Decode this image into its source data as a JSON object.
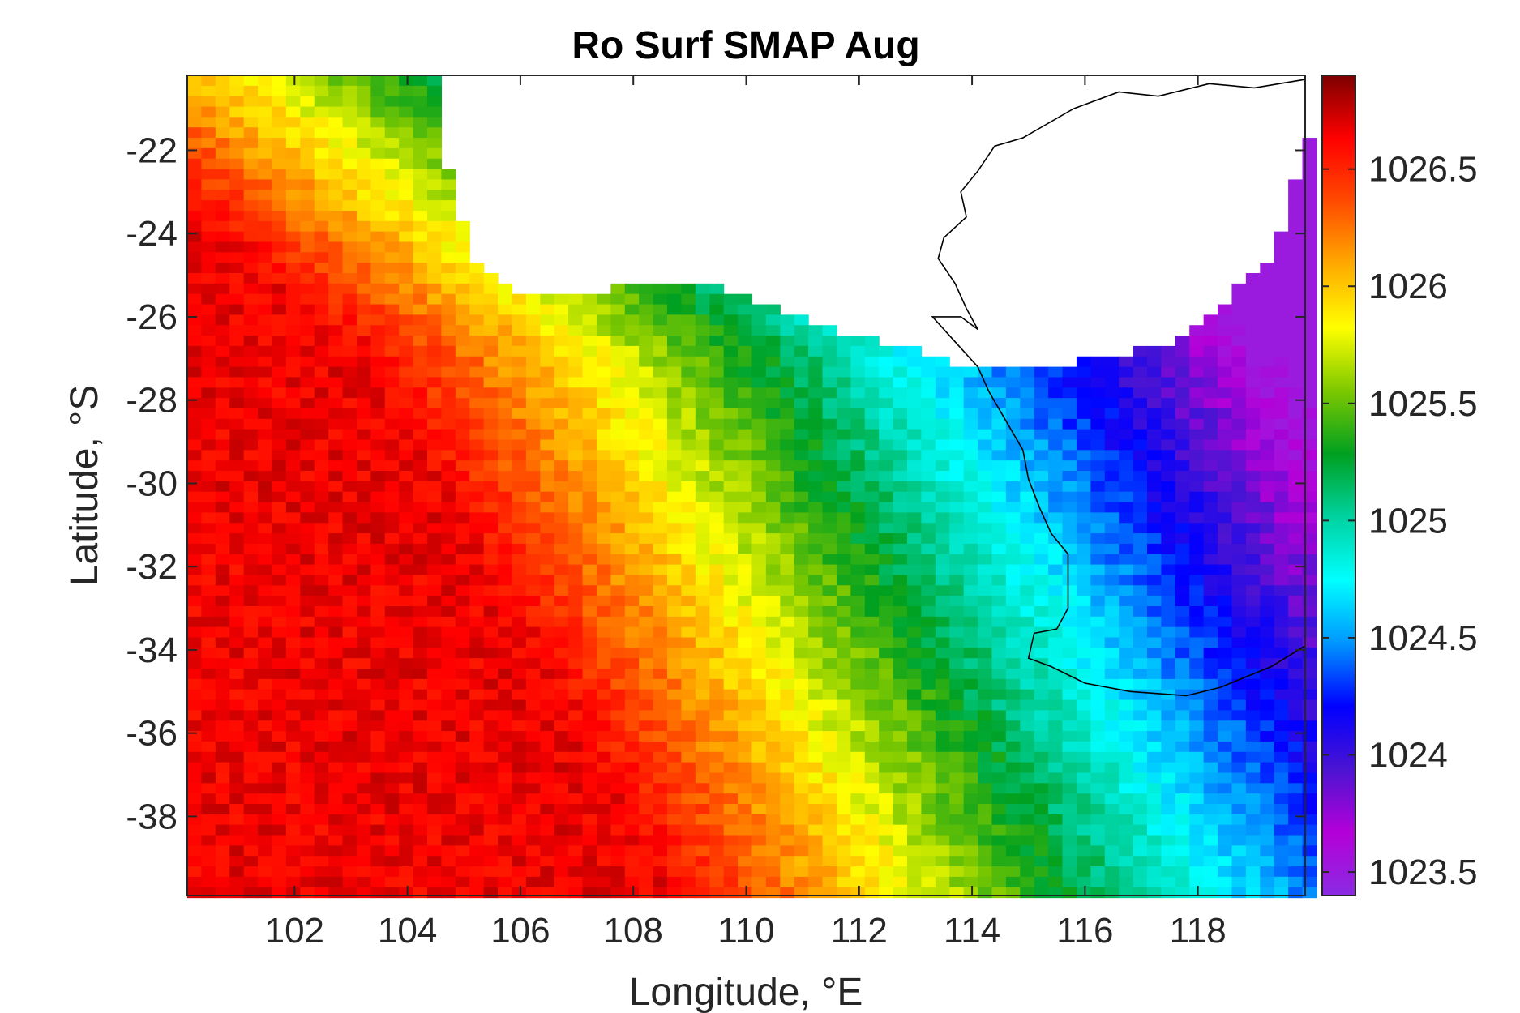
{
  "chart_data": {
    "type": "heatmap",
    "title": "Ro Surf SMAP Aug",
    "xlabel": "Longitude, °E",
    "ylabel": "Latitude, °S",
    "xlim": [
      100.1,
      119.9
    ],
    "ylim": [
      -39.9,
      -20.2
    ],
    "x_ticks": [
      102,
      104,
      106,
      108,
      110,
      112,
      114,
      116,
      118
    ],
    "y_ticks": [
      -22,
      -24,
      -26,
      -28,
      -30,
      -32,
      -34,
      -36,
      -38
    ],
    "x_tick_labels": [
      "102",
      "104",
      "106",
      "108",
      "110",
      "112",
      "114",
      "116",
      "118"
    ],
    "y_tick_labels": [
      "-22",
      "-24",
      "-26",
      "-28",
      "-30",
      "-32",
      "-34",
      "-36",
      "-38"
    ],
    "colorbar": {
      "range": [
        1023.4,
        1026.9
      ],
      "ticks": [
        1023.5,
        1024,
        1024.5,
        1025,
        1025.5,
        1026,
        1026.5
      ],
      "tick_labels": [
        "1023.5",
        "1024",
        "1024.5",
        "1025",
        "1025.5",
        "1026",
        "1026.5"
      ],
      "colormap": "jet-purple",
      "colors": [
        "#8a2be2",
        "#b400d8",
        "#4b14d2",
        "#0000ff",
        "#0096ff",
        "#00ffff",
        "#00d2a0",
        "#00a020",
        "#7dc800",
        "#ffff00",
        "#ffaa00",
        "#ff4b00",
        "#ff0000",
        "#7d0000"
      ]
    },
    "land_color": "#ffffff",
    "coastline_color": "#000000",
    "grid": false,
    "grid_resolution_deg": 0.25,
    "value_pattern": "Density highest (~1026.5-1026.8) in the west (100-104°E), decreasing eastward through yellow (~1026 at ~106-109°E), green (~1025.4 at ~111-112°E), cyan (~1025 at ~113-114°E), blue (~1024.4 near 115-116°E coast) to purple (~1023.6-1024) east of 116°E; land (Australia) blank north-east of the coastline."
  }
}
